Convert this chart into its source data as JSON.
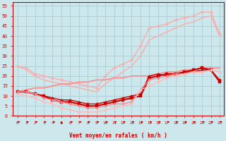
{
  "bg_color": "#cce8ec",
  "grid_color": "#b0d0d8",
  "xlabel": "Vent moyen/en rafales ( km/h )",
  "xlim": [
    -0.5,
    23.5
  ],
  "ylim": [
    0,
    57
  ],
  "yticks": [
    0,
    5,
    10,
    15,
    20,
    25,
    30,
    35,
    40,
    45,
    50,
    55
  ],
  "xticks": [
    0,
    1,
    2,
    3,
    4,
    5,
    6,
    7,
    8,
    9,
    10,
    11,
    12,
    13,
    14,
    15,
    16,
    17,
    18,
    19,
    20,
    21,
    22,
    23
  ],
  "series": [
    {
      "x": [
        0,
        1,
        2,
        3,
        4,
        5,
        6,
        7,
        8,
        9,
        10,
        11,
        12,
        13,
        14,
        15,
        16,
        17,
        18,
        19,
        20,
        21,
        22,
        23
      ],
      "y": [
        25,
        24,
        21,
        20,
        19,
        18,
        17,
        16,
        15,
        14,
        20,
        24,
        26,
        28,
        35,
        44,
        45,
        46,
        48,
        49,
        50,
        52,
        52,
        41
      ],
      "color": "#ffaaaa",
      "lw": 1.0,
      "marker": "D",
      "ms": 2.0
    },
    {
      "x": [
        0,
        1,
        2,
        3,
        4,
        5,
        6,
        7,
        8,
        9,
        10,
        11,
        12,
        13,
        14,
        15,
        16,
        17,
        18,
        19,
        20,
        21,
        22,
        23
      ],
      "y": [
        25,
        23,
        20,
        18,
        17,
        16,
        15,
        14,
        13,
        12,
        16,
        19,
        22,
        25,
        30,
        38,
        40,
        42,
        44,
        46,
        47,
        49,
        50,
        40
      ],
      "color": "#ffaaaa",
      "lw": 1.0,
      "marker": null,
      "ms": 0
    },
    {
      "x": [
        0,
        1,
        2,
        3,
        4,
        5,
        6,
        7,
        8,
        9,
        10,
        11,
        12,
        13,
        14,
        15,
        16,
        17,
        18,
        19,
        20,
        21,
        22,
        23
      ],
      "y": [
        12,
        13,
        14,
        14,
        15,
        16,
        16,
        17,
        17,
        18,
        18,
        19,
        19,
        20,
        20,
        20,
        21,
        22,
        22,
        23,
        23,
        24,
        24,
        24
      ],
      "color": "#ff8888",
      "lw": 1.2,
      "marker": null,
      "ms": 0
    },
    {
      "x": [
        0,
        1,
        2,
        3,
        4,
        5,
        6,
        7,
        8,
        9,
        10,
        11,
        12,
        13,
        14,
        15,
        16,
        17,
        18,
        19,
        20,
        21,
        22,
        23
      ],
      "y": [
        12,
        12,
        11,
        10,
        9,
        8,
        8,
        7,
        6,
        6,
        7,
        8,
        9,
        10,
        11,
        20,
        21,
        20,
        21,
        22,
        22,
        23,
        23,
        18
      ],
      "color": "#cc0000",
      "lw": 1.0,
      "marker": "D",
      "ms": 2.0
    },
    {
      "x": [
        0,
        1,
        2,
        3,
        4,
        5,
        6,
        7,
        8,
        9,
        10,
        11,
        12,
        13,
        14,
        15,
        16,
        17,
        18,
        19,
        20,
        21,
        22,
        23
      ],
      "y": [
        12,
        12,
        11,
        10,
        8,
        7,
        7,
        6,
        5,
        5,
        6,
        7,
        8,
        9,
        10,
        19,
        20,
        21,
        21,
        22,
        23,
        24,
        23,
        17
      ],
      "color": "#cc0000",
      "lw": 1.5,
      "marker": "s",
      "ms": 2.2
    },
    {
      "x": [
        0,
        1,
        2,
        3,
        4,
        5,
        6,
        7,
        8,
        9,
        10,
        11,
        12,
        13,
        14,
        15,
        16,
        17,
        18,
        19,
        20,
        21,
        22,
        23
      ],
      "y": [
        12,
        12,
        11,
        9,
        8,
        7,
        6,
        5,
        4,
        4,
        5,
        6,
        6,
        7,
        13,
        18,
        19,
        20,
        21,
        21,
        22,
        22,
        23,
        22
      ],
      "color": "#ff8888",
      "lw": 1.0,
      "marker": "D",
      "ms": 2.0
    },
    {
      "x": [
        0,
        1,
        2,
        3,
        4,
        5,
        6,
        7,
        8,
        9,
        10,
        11,
        12,
        13,
        14,
        15,
        16,
        17,
        18,
        19,
        20,
        21,
        22,
        23
      ],
      "y": [
        11,
        10,
        9,
        7,
        6,
        4,
        3,
        2,
        2,
        2,
        3,
        4,
        5,
        6,
        13,
        15,
        17,
        19,
        20,
        21,
        22,
        22,
        23,
        22
      ],
      "color": "#ffbbbb",
      "lw": 1.0,
      "marker": "D",
      "ms": 2.0
    }
  ],
  "arrow_color": "#cc0000"
}
